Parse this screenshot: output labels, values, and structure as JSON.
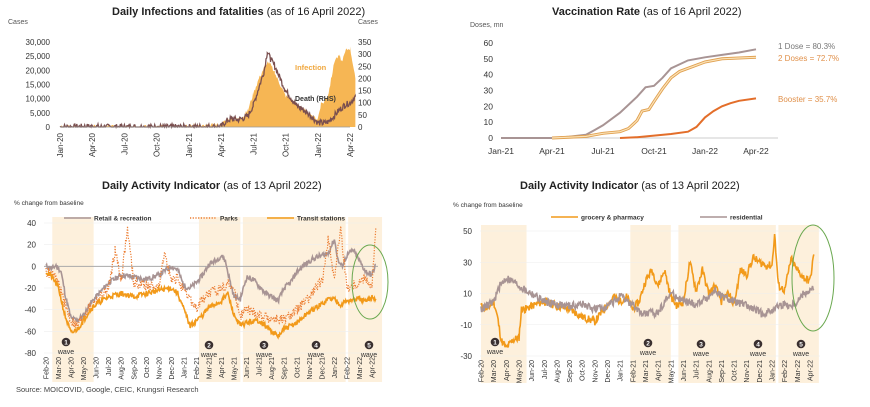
{
  "source": "Source: MOICOVID, Google, CEIC, Krungsri Research",
  "chart_data": [
    {
      "id": "infections",
      "type": "area",
      "title": "Daily Infections and fatalities",
      "subtitle": "(as of 16 April 2022)",
      "ylabel": "Cases",
      "ylabel_right": "Cases",
      "ylim": [
        0,
        30000
      ],
      "ylim_right": [
        0,
        350
      ],
      "yticks": [
        "0",
        "5,000",
        "10,000",
        "15,000",
        "20,000",
        "25,000",
        "30,000"
      ],
      "yticks_right": [
        "0",
        "50",
        "100",
        "150",
        "200",
        "250",
        "300",
        "350"
      ],
      "xticks": [
        "Jan-20",
        "Apr-20",
        "Jul-20",
        "Oct-20",
        "Jan-21",
        "Apr-21",
        "Jul-21",
        "Oct-21",
        "Jan-22",
        "Apr-22"
      ],
      "x_months": [
        0,
        3,
        6,
        9,
        12,
        15,
        18,
        21,
        24,
        27
      ],
      "series": [
        {
          "name": "Infection",
          "axis": "left",
          "color": "#f6b654",
          "x": [
            0,
            2,
            3,
            4,
            6,
            9,
            12,
            12.5,
            13,
            15,
            15.5,
            16,
            16.5,
            17,
            17.5,
            18,
            18.5,
            19,
            19.3,
            19.6,
            20,
            20.5,
            21,
            21.5,
            22,
            22.5,
            23,
            23.5,
            24,
            24.3,
            24.6,
            25,
            25.3,
            25.6,
            26,
            26.3,
            26.6,
            27,
            27.2,
            27.5
          ],
          "values": [
            0,
            50,
            150,
            30,
            20,
            50,
            300,
            800,
            200,
            1000,
            2500,
            3200,
            2800,
            3500,
            6000,
            12000,
            17000,
            21000,
            23000,
            22000,
            19000,
            15000,
            11000,
            10000,
            8000,
            7000,
            5000,
            3500,
            3000,
            8000,
            9000,
            12000,
            18000,
            24000,
            25000,
            23000,
            27000,
            28000,
            24000,
            17000
          ]
        },
        {
          "name": "Death (RHS)",
          "axis": "right",
          "color": "#7a4f4f",
          "x": [
            0,
            2,
            3,
            4,
            6,
            9,
            12,
            15,
            15.5,
            16,
            16.5,
            17,
            17.5,
            18,
            18.5,
            19,
            19.3,
            19.6,
            20,
            20.5,
            21,
            21.5,
            22,
            22.5,
            23,
            23.5,
            24,
            24.5,
            25,
            25.5,
            26,
            26.5,
            27,
            27.5
          ],
          "values": [
            0,
            1,
            2,
            0,
            0,
            0,
            0,
            2,
            25,
            35,
            30,
            35,
            45,
            90,
            160,
            230,
            310,
            280,
            250,
            200,
            150,
            120,
            90,
            75,
            60,
            40,
            18,
            15,
            22,
            45,
            70,
            90,
            100,
            125
          ]
        }
      ],
      "annotations": [
        "Infection",
        "Death (RHS)"
      ]
    },
    {
      "id": "vaccination",
      "type": "line",
      "title": "Vaccination Rate",
      "subtitle": "(as of 16 April 2022)",
      "ylabel": "Doses, mn",
      "ylim": [
        0,
        60
      ],
      "yticks": [
        "0",
        "10",
        "20",
        "30",
        "40",
        "50",
        "60"
      ],
      "xticks": [
        "Jan-21",
        "Apr-21",
        "Jul-21",
        "Oct-21",
        "Jan-22",
        "Apr-22"
      ],
      "x_months": [
        0,
        3,
        6,
        9,
        12,
        15
      ],
      "series": [
        {
          "name": "1 Dose = 80.3%",
          "color": "#a89494",
          "x": [
            0,
            3,
            4,
            5,
            5.5,
            6,
            7,
            8,
            8.5,
            9,
            9.5,
            10,
            11,
            12,
            13,
            14,
            15
          ],
          "values": [
            0,
            0,
            0.8,
            2,
            5,
            8,
            16,
            26,
            32,
            33,
            38,
            44,
            49,
            51,
            52.5,
            54,
            56
          ]
        },
        {
          "name": "2 Doses = 72.7%",
          "color": "#efba76",
          "x": [
            3,
            4,
            5,
            6,
            7,
            7.5,
            8,
            8.3,
            8.7,
            9,
            9.5,
            10,
            10.5,
            11,
            12,
            13,
            14,
            15
          ],
          "values": [
            0,
            0.5,
            1,
            3,
            4,
            6,
            11,
            17,
            18,
            23,
            31,
            38,
            42,
            44,
            48,
            50,
            50.5,
            51
          ]
        },
        {
          "name": "Booster = 35.7%",
          "color": "#e36e2a",
          "x": [
            7,
            8,
            9,
            10,
            11,
            11.5,
            12,
            12.5,
            13,
            13.5,
            14,
            15
          ],
          "values": [
            0,
            0.5,
            1.5,
            2.5,
            4,
            7,
            13,
            17,
            20,
            22,
            23.5,
            25
          ]
        }
      ]
    },
    {
      "id": "activity-1",
      "type": "line",
      "title": "Daily Activity Indicator",
      "subtitle": "(as of 13 April 2022)",
      "ylabel": "% change from baseline",
      "ylim": [
        -80,
        40
      ],
      "yticks": [
        "-80",
        "-60",
        "-40",
        "-20",
        "0",
        "20",
        "40"
      ],
      "xticks": [
        "Feb-20",
        "Mar-20",
        "Apr-20",
        "May-20",
        "Jun-20",
        "Jul-20",
        "Aug-20",
        "Sep-20",
        "Oct-20",
        "Nov-20",
        "Dec-20",
        "Jan-21",
        "Feb-21",
        "Mar-21",
        "Apr-21",
        "May-21",
        "Jun-21",
        "Jul-21",
        "Aug-21",
        "Sep-21",
        "Oct-21",
        "Nov-21",
        "Dec-21",
        "Jan-22",
        "Feb-22",
        "Mar-22",
        "Apr-22"
      ],
      "waves": [
        {
          "label": "1",
          "text": "wave",
          "start": 0.5,
          "end": 3.7
        },
        {
          "label": "2",
          "text": "wave",
          "start": 12.2,
          "end": 15.5
        },
        {
          "label": "3",
          "text": "wave",
          "start": 15.7,
          "end": 22.2
        },
        {
          "label": "4",
          "text": "wave",
          "start": 15.7,
          "end": 24.0
        },
        {
          "label": "5",
          "text": "wave",
          "start": 24.2,
          "end": 26.8
        }
      ],
      "series": [
        {
          "name": "Retail & recreation",
          "style": "solid",
          "color": "#a89494",
          "x": [
            0,
            0.5,
            0.8,
            1.2,
            1.6,
            2,
            2.5,
            3,
            3.5,
            4,
            5,
            6,
            7,
            8,
            9,
            10,
            10.5,
            11,
            11.5,
            12,
            12.5,
            13,
            13.5,
            14,
            14.3,
            14.7,
            15,
            15.5,
            16,
            16.5,
            17,
            17.5,
            18,
            18.5,
            19,
            19.5,
            20,
            20.5,
            21,
            21.5,
            22,
            22.5,
            23,
            23.3,
            23.6,
            24,
            24.5,
            25,
            25.5,
            26,
            26.3
          ],
          "values": [
            0,
            -2,
            1,
            -5,
            -30,
            -48,
            -50,
            -45,
            -35,
            -28,
            -15,
            -8,
            -10,
            -12,
            -8,
            0,
            -3,
            -18,
            -20,
            -15,
            -8,
            2,
            5,
            10,
            5,
            -15,
            -28,
            -30,
            -10,
            -12,
            -18,
            -25,
            -28,
            -32,
            -20,
            -15,
            -5,
            0,
            5,
            8,
            10,
            12,
            25,
            5,
            0,
            10,
            15,
            5,
            -5,
            -8,
            2
          ]
        },
        {
          "name": "Parks",
          "style": "dotted",
          "color": "#ec7c30",
          "x": [
            0,
            0.5,
            1,
            1.5,
            2,
            2.5,
            3,
            3.5,
            4,
            5,
            5.5,
            6,
            6.5,
            7,
            8,
            9,
            9.5,
            10,
            10.5,
            11,
            11.5,
            12,
            12.5,
            13,
            14,
            14.5,
            15,
            15.5,
            16,
            17,
            18,
            19,
            19.5,
            20,
            21,
            21.5,
            22,
            22.5,
            23,
            23.5,
            24,
            25,
            25.5,
            26,
            26.3
          ],
          "values": [
            -5,
            -8,
            -15,
            -35,
            -50,
            -55,
            -45,
            -38,
            -32,
            -20,
            15,
            -12,
            35,
            -15,
            -18,
            -20,
            15,
            -15,
            -10,
            -25,
            -30,
            -40,
            -30,
            -25,
            -20,
            -15,
            -22,
            -45,
            -40,
            -45,
            -48,
            -50,
            -45,
            -40,
            -30,
            -20,
            -15,
            25,
            -10,
            35,
            -20,
            -15,
            -10,
            -20,
            35
          ]
        },
        {
          "name": "Transit stations",
          "style": "solid",
          "color": "#f29a1a",
          "x": [
            0,
            0.5,
            1,
            1.5,
            2,
            2.5,
            3,
            3.5,
            4,
            5,
            6,
            7,
            8,
            9,
            10,
            10.5,
            11,
            11.5,
            12,
            12.5,
            13,
            14,
            14.5,
            15,
            15.5,
            16,
            17,
            18,
            18.5,
            19,
            20,
            21,
            22,
            22.5,
            23,
            23.5,
            24,
            25,
            25.5,
            26,
            26.3
          ],
          "values": [
            -5,
            -10,
            -20,
            -45,
            -62,
            -58,
            -50,
            -40,
            -35,
            -28,
            -25,
            -28,
            -25,
            -22,
            -20,
            -25,
            -40,
            -55,
            -50,
            -45,
            -38,
            -32,
            -25,
            -45,
            -55,
            -52,
            -50,
            -60,
            -65,
            -58,
            -52,
            -42,
            -35,
            -30,
            -30,
            -35,
            -32,
            -30,
            -33,
            -28,
            -30
          ]
        }
      ]
    },
    {
      "id": "activity-2",
      "type": "line",
      "title": "Daily Activity Indicator",
      "subtitle": "(as of 13 April 2022)",
      "ylabel": "% change from baseline",
      "ylim": [
        -30,
        50
      ],
      "yticks": [
        "-30",
        "-10",
        "10",
        "30",
        "50"
      ],
      "xticks": [
        "Feb-20",
        "Mar-20",
        "Apr-20",
        "May-20",
        "Jun-20",
        "Jul-20",
        "Aug-20",
        "Sep-20",
        "Oct-20",
        "Nov-20",
        "Dec-20",
        "Jan-21",
        "Feb-21",
        "Mar-21",
        "Apr-21",
        "May-21",
        "Jun-21",
        "Jul-21",
        "Aug-21",
        "Sep-21",
        "Oct-21",
        "Nov-21",
        "Dec-21",
        "Jan-22",
        "Feb-22",
        "Mar-22",
        "Apr-22"
      ],
      "waves": [
        {
          "label": "1",
          "text": "wave",
          "start": 0,
          "end": 3.6
        },
        {
          "label": "2",
          "text": "wave",
          "start": 11.8,
          "end": 15.0
        },
        {
          "label": "3",
          "text": "wave",
          "start": 15.6,
          "end": 23.2
        },
        {
          "label": "4",
          "text": "wave",
          "start": 15.6,
          "end": 23.2
        },
        {
          "label": "5",
          "text": "wave",
          "start": 23.4,
          "end": 26.7
        }
      ],
      "series": [
        {
          "name": "grocery & pharmacy",
          "color": "#f29a1a",
          "x": [
            0,
            0.5,
            1,
            1.3,
            1.6,
            2,
            2.5,
            3,
            3.2,
            3.5,
            4,
            5,
            6,
            7,
            8,
            9,
            10,
            10.5,
            11,
            11.5,
            12,
            12.5,
            13,
            13.5,
            14,
            14.5,
            15,
            15.5,
            16,
            16.5,
            17,
            17.5,
            18,
            18.5,
            19,
            19.5,
            20,
            20.5,
            21,
            21.5,
            22,
            22.5,
            23,
            23.2,
            23.5,
            24,
            24.5,
            25,
            25.5,
            26,
            26.3
          ],
          "values": [
            2,
            0,
            5,
            -5,
            -20,
            -25,
            -20,
            -18,
            0,
            0,
            2,
            5,
            2,
            0,
            -5,
            -8,
            3,
            8,
            5,
            8,
            0,
            5,
            18,
            25,
            15,
            25,
            8,
            2,
            5,
            30,
            12,
            25,
            10,
            15,
            5,
            10,
            3,
            25,
            22,
            33,
            30,
            28,
            28,
            48,
            15,
            12,
            32,
            25,
            20,
            18,
            35
          ]
        },
        {
          "name": "residential",
          "color": "#a89494",
          "x": [
            0,
            0.5,
            1,
            1.5,
            2,
            2.5,
            3,
            3.5,
            4,
            5,
            6,
            7,
            8,
            9,
            10,
            10.5,
            11,
            11.5,
            12,
            12.5,
            13,
            14,
            14.5,
            15,
            15.5,
            16,
            17,
            18,
            18.5,
            19,
            20,
            21,
            22,
            22.5,
            23,
            23.5,
            24,
            24.5,
            25,
            25.5,
            26,
            26.3
          ],
          "values": [
            0,
            2,
            5,
            15,
            20,
            18,
            15,
            12,
            10,
            5,
            3,
            2,
            3,
            0,
            2,
            5,
            8,
            5,
            3,
            -2,
            -3,
            -2,
            5,
            10,
            8,
            5,
            3,
            8,
            12,
            8,
            5,
            2,
            -2,
            -3,
            0,
            2,
            3,
            2,
            5,
            10,
            12,
            13
          ]
        }
      ]
    }
  ]
}
